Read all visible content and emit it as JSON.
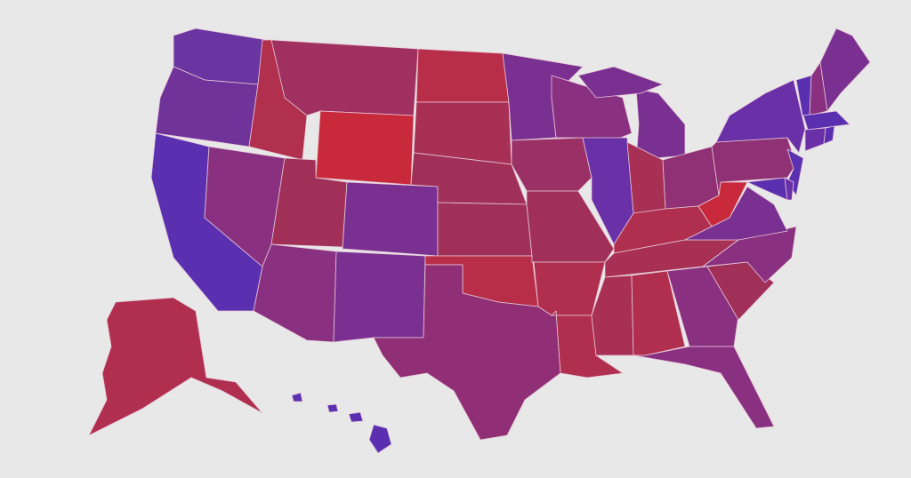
{
  "map": {
    "background": "#e8e8e8",
    "state_colors": {
      "WA": "#6a35a0",
      "OR": "#70339a",
      "CA": "#5a30b0",
      "ID": "#b0304e",
      "NV": "#8a3080",
      "MT": "#a03060",
      "WY": "#c82a3c",
      "UT": "#a03058",
      "CO": "#7a3090",
      "AZ": "#8a3080",
      "NM": "#7a3090",
      "ND": "#b82e48",
      "SD": "#a83055",
      "NE": "#a03058",
      "KS": "#a03058",
      "OK": "#b82e48",
      "TX": "#902f75",
      "MN": "#7a3090",
      "IA": "#9a3065",
      "MO": "#a03058",
      "AR": "#b02e4e",
      "LA": "#b02e4e",
      "WI": "#8a3080",
      "IL": "#6a30a8",
      "MI": "#7a3090",
      "IN": "#a83055",
      "OH": "#903075",
      "KY": "#b02e4e",
      "TN": "#a83055",
      "MS": "#a83055",
      "AL": "#b02e4e",
      "GA": "#8a3080",
      "FL": "#8a3080",
      "SC": "#a03058",
      "NC": "#8a3080",
      "VA": "#7a3090",
      "WV": "#c82a3c",
      "PA": "#903075",
      "NY": "#6a30a8",
      "NJ": "#5a30b0",
      "MD": "#5a30b0",
      "DE": "#6a30a8",
      "VT": "#5a30b0",
      "NH": "#8a3080",
      "ME": "#7a3090",
      "MA": "#5a30b0",
      "CT": "#6a30a8",
      "RI": "#5a30b0",
      "AK": "#b02e4e",
      "HI": "#5a30b0"
    }
  }
}
